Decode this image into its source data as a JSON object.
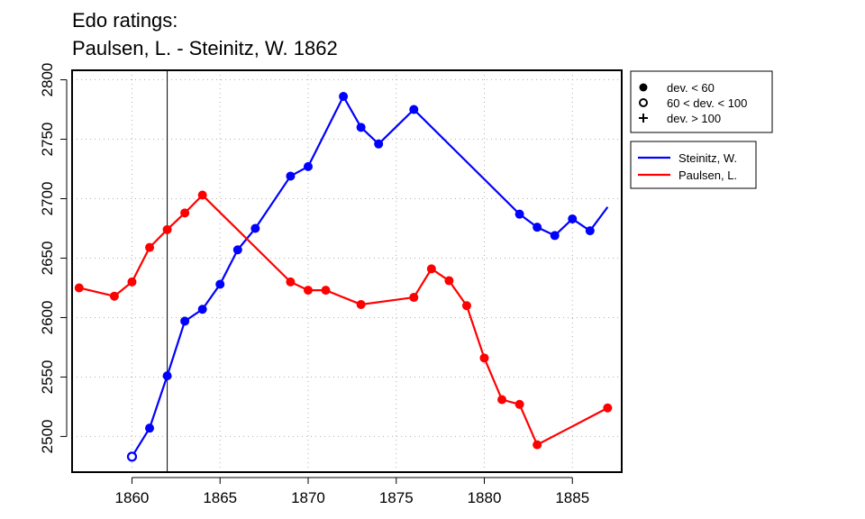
{
  "chart_data": {
    "type": "line",
    "title": "Edo ratings:",
    "subtitle": "Paulsen, L. - Steinitz, W. 1862",
    "xlabel": "",
    "ylabel": "",
    "xlim": [
      1856.6,
      1887.8
    ],
    "ylim": [
      2470,
      2808
    ],
    "xticks": [
      1860,
      1865,
      1870,
      1875,
      1880,
      1885
    ],
    "yticks": [
      2500,
      2550,
      2600,
      2650,
      2700,
      2750,
      2800
    ],
    "grid": true,
    "vline": 1862,
    "legend_markers": {
      "placement": "top-right, outside",
      "items": [
        {
          "symbol": "filled-circle",
          "label": "dev. < 60"
        },
        {
          "symbol": "open-circle",
          "label": "60 < dev. < 100"
        },
        {
          "symbol": "plus",
          "label": "dev. > 100"
        }
      ]
    },
    "legend_series_placement": "right, outside",
    "series": [
      {
        "name": "Steinitz, W.",
        "color": "#0000ff",
        "points": [
          {
            "x": 1860,
            "y": 2483,
            "marker": "open-circle"
          },
          {
            "x": 1861,
            "y": 2507,
            "marker": "filled-circle"
          },
          {
            "x": 1862,
            "y": 2551,
            "marker": "filled-circle"
          },
          {
            "x": 1863,
            "y": 2597,
            "marker": "filled-circle"
          },
          {
            "x": 1864,
            "y": 2607,
            "marker": "filled-circle"
          },
          {
            "x": 1865,
            "y": 2628,
            "marker": "filled-circle"
          },
          {
            "x": 1866,
            "y": 2657,
            "marker": "filled-circle"
          },
          {
            "x": 1867,
            "y": 2675,
            "marker": "filled-circle"
          },
          {
            "x": 1869,
            "y": 2719,
            "marker": "filled-circle"
          },
          {
            "x": 1870,
            "y": 2727,
            "marker": "filled-circle"
          },
          {
            "x": 1872,
            "y": 2786,
            "marker": "filled-circle"
          },
          {
            "x": 1873,
            "y": 2760,
            "marker": "filled-circle"
          },
          {
            "x": 1874,
            "y": 2746,
            "marker": "filled-circle"
          },
          {
            "x": 1876,
            "y": 2775,
            "marker": "filled-circle"
          },
          {
            "x": 1882,
            "y": 2687,
            "marker": "filled-circle"
          },
          {
            "x": 1883,
            "y": 2676,
            "marker": "filled-circle"
          },
          {
            "x": 1884,
            "y": 2669,
            "marker": "filled-circle"
          },
          {
            "x": 1885,
            "y": 2683,
            "marker": "filled-circle"
          },
          {
            "x": 1886,
            "y": 2673,
            "marker": "filled-circle"
          },
          {
            "x": 1887,
            "y": 2693,
            "marker": "none"
          }
        ]
      },
      {
        "name": "Paulsen, L.",
        "color": "#ff0000",
        "points": [
          {
            "x": 1857,
            "y": 2625,
            "marker": "filled-circle"
          },
          {
            "x": 1859,
            "y": 2618,
            "marker": "filled-circle"
          },
          {
            "x": 1860,
            "y": 2630,
            "marker": "filled-circle"
          },
          {
            "x": 1861,
            "y": 2659,
            "marker": "filled-circle"
          },
          {
            "x": 1862,
            "y": 2674,
            "marker": "filled-circle"
          },
          {
            "x": 1863,
            "y": 2688,
            "marker": "filled-circle"
          },
          {
            "x": 1864,
            "y": 2703,
            "marker": "filled-circle"
          },
          {
            "x": 1869,
            "y": 2630,
            "marker": "filled-circle"
          },
          {
            "x": 1870,
            "y": 2623,
            "marker": "filled-circle"
          },
          {
            "x": 1871,
            "y": 2623,
            "marker": "filled-circle"
          },
          {
            "x": 1873,
            "y": 2611,
            "marker": "filled-circle"
          },
          {
            "x": 1876,
            "y": 2617,
            "marker": "filled-circle"
          },
          {
            "x": 1877,
            "y": 2641,
            "marker": "filled-circle"
          },
          {
            "x": 1878,
            "y": 2631,
            "marker": "filled-circle"
          },
          {
            "x": 1879,
            "y": 2610,
            "marker": "filled-circle"
          },
          {
            "x": 1880,
            "y": 2566,
            "marker": "filled-circle"
          },
          {
            "x": 1881,
            "y": 2531,
            "marker": "filled-circle"
          },
          {
            "x": 1882,
            "y": 2527,
            "marker": "filled-circle"
          },
          {
            "x": 1883,
            "y": 2493,
            "marker": "filled-circle"
          },
          {
            "x": 1887,
            "y": 2524,
            "marker": "filled-circle"
          }
        ]
      }
    ]
  }
}
